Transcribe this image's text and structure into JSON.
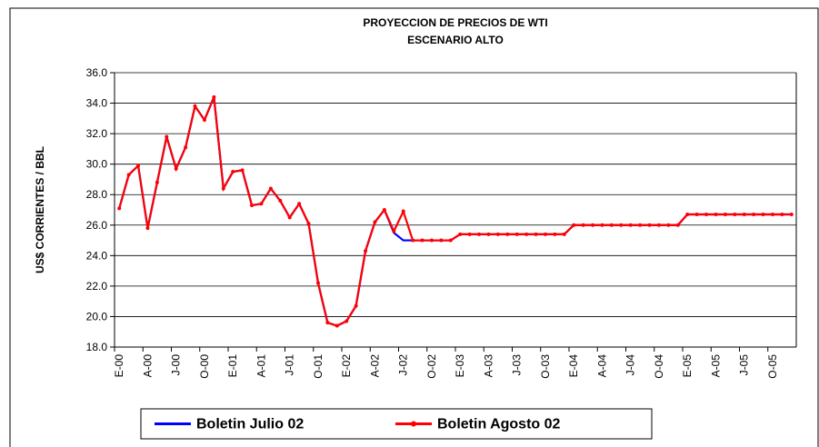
{
  "chart_data": {
    "type": "line",
    "title": "PROYECCION DE PRECIOS DE WTI",
    "subtitle": "ESCENARIO ALTO",
    "y_label": "US$ CORRIENTES / BBL",
    "categories": [
      "E-00",
      null,
      null,
      "A-00",
      null,
      null,
      "J-00",
      null,
      null,
      "O-00",
      null,
      null,
      "E-01",
      null,
      null,
      "A-01",
      null,
      null,
      "J-01",
      null,
      null,
      "O-01",
      null,
      null,
      "E-02",
      null,
      null,
      "A-02",
      null,
      null,
      "J-02",
      null,
      null,
      "O-02",
      null,
      null,
      "E-03",
      null,
      null,
      "A-03",
      null,
      null,
      "J-03",
      null,
      null,
      "O-03",
      null,
      null,
      "E-04",
      null,
      null,
      "A-04",
      null,
      null,
      "J-04",
      null,
      null,
      "O-04",
      null,
      null,
      "E-05",
      null,
      null,
      "A-05",
      null,
      null,
      "J-05",
      null,
      null,
      "O-05",
      null,
      null
    ],
    "series": [
      {
        "name": "Boletin Julio 02",
        "color": "#0000ff",
        "markers": false,
        "values": [
          27.1,
          29.3,
          29.9,
          25.8,
          28.8,
          31.8,
          29.7,
          31.1,
          33.8,
          32.9,
          34.4,
          28.4,
          29.5,
          29.6,
          27.3,
          27.4,
          28.4,
          27.6,
          26.5,
          27.4,
          26.1,
          22.2,
          19.6,
          19.4,
          19.7,
          20.7,
          24.3,
          26.2,
          27.0,
          25.5,
          25.0,
          25.0,
          25.0,
          25.0,
          25.0,
          25.0,
          25.4,
          25.4,
          25.4,
          25.4,
          25.4,
          25.4,
          25.4,
          25.4,
          25.4,
          25.4,
          25.4,
          25.4,
          26.0,
          26.0,
          26.0,
          26.0,
          26.0,
          26.0,
          26.0,
          26.0,
          26.0,
          26.0,
          26.0,
          26.0,
          26.7,
          26.7,
          26.7,
          26.7,
          26.7,
          26.7,
          26.7,
          26.7,
          26.7,
          26.7,
          26.7,
          26.7
        ]
      },
      {
        "name": "Boletin Agosto 02",
        "color": "#ff0000",
        "markers": true,
        "values": [
          27.1,
          29.3,
          29.9,
          25.8,
          28.8,
          31.8,
          29.7,
          31.1,
          33.8,
          32.9,
          34.4,
          28.4,
          29.5,
          29.6,
          27.3,
          27.4,
          28.4,
          27.6,
          26.5,
          27.4,
          26.1,
          22.2,
          19.6,
          19.4,
          19.7,
          20.7,
          24.3,
          26.2,
          27.0,
          25.6,
          26.9,
          25.0,
          25.0,
          25.0,
          25.0,
          25.0,
          25.4,
          25.4,
          25.4,
          25.4,
          25.4,
          25.4,
          25.4,
          25.4,
          25.4,
          25.4,
          25.4,
          25.4,
          26.0,
          26.0,
          26.0,
          26.0,
          26.0,
          26.0,
          26.0,
          26.0,
          26.0,
          26.0,
          26.0,
          26.0,
          26.7,
          26.7,
          26.7,
          26.7,
          26.7,
          26.7,
          26.7,
          26.7,
          26.7,
          26.7,
          26.7,
          26.7
        ]
      }
    ],
    "ylim": [
      18,
      36
    ],
    "yticks": [
      {
        "value": 18,
        "label": "18.0"
      },
      {
        "value": 20,
        "label": "20.0"
      },
      {
        "value": 22,
        "label": "22.0"
      },
      {
        "value": 24,
        "label": "24.0"
      },
      {
        "value": 26,
        "label": "26.0"
      },
      {
        "value": 28,
        "label": "28.0"
      },
      {
        "value": 30,
        "label": "30.0"
      },
      {
        "value": 32,
        "label": "32.0"
      },
      {
        "value": 34,
        "label": "34.0"
      },
      {
        "value": 36,
        "label": "36.0"
      }
    ],
    "grid": true,
    "legend": "bottom"
  }
}
